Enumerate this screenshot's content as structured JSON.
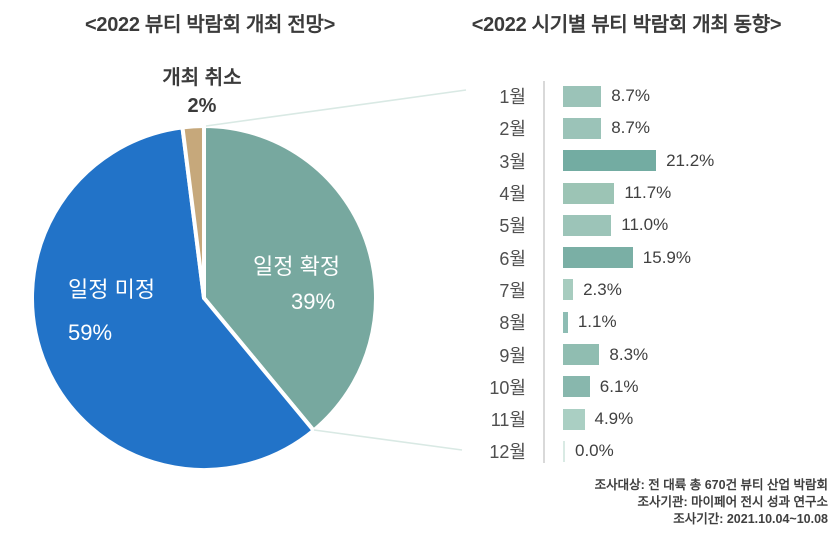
{
  "titles": {
    "left": "<2022 뷰티 박람회 개최 전망>",
    "right": "<2022 시기별 뷰티 박람회 개최 동향>"
  },
  "footer": {
    "lines": [
      "조사대상: 전 대륙 총 670건 뷰티 산업 박람회",
      "조사기관: 마이페어 전시 성과 연구소",
      "조사기간: 2021.10.04~10.08"
    ]
  },
  "colors": {
    "pie_confirmed": "#77a89f",
    "pie_undecided": "#2273c8",
    "pie_cancelled": "#c6a87b",
    "axis": "#d9d9d9",
    "callout_line": "#d9e9e4",
    "text_dark": "#3f3f3f"
  },
  "chart_data": [
    {
      "type": "pie",
      "title": "<2022 뷰티 박람회 개최 전망>",
      "labels": [
        "일정 확정",
        "일정 미정",
        "개최 취소"
      ],
      "values": [
        39,
        59,
        2
      ],
      "pct_labels": [
        "39%",
        "59%",
        "2%"
      ],
      "unit": "%",
      "colors": [
        "#77a89f",
        "#2273c8",
        "#c6a87b"
      ],
      "start_angle_deg_from_top": 0,
      "direction": "clockwise",
      "legend": "labels drawn on slices; cancelled slice labeled above pie"
    },
    {
      "type": "bar",
      "orientation": "horizontal",
      "title": "<2022 시기별 뷰티 박람회 개최 동향>",
      "categories": [
        "1월",
        "2월",
        "3월",
        "4월",
        "5월",
        "6월",
        "7월",
        "8월",
        "9월",
        "10월",
        "11월",
        "12월"
      ],
      "values": [
        8.7,
        8.7,
        21.2,
        11.7,
        11.0,
        15.9,
        2.3,
        1.1,
        8.3,
        6.1,
        4.9,
        0.0
      ],
      "value_labels": [
        "8.7%",
        "8.7%",
        "21.2%",
        "11.7%",
        "11.0%",
        "15.9%",
        "2.3%",
        "1.1%",
        "8.3%",
        "6.1%",
        "4.9%",
        "0.0%"
      ],
      "unit": "%",
      "xlim": [
        0,
        22
      ],
      "grid": false,
      "bar_colors": [
        "#9bc3b8",
        "#9bc3b8",
        "#73aca2",
        "#9cc4b5",
        "#9cc4b8",
        "#7aafa5",
        "#a7ccbf",
        "#8ebdb4",
        "#90bdb1",
        "#88b7ad",
        "#aacfc3",
        "#d9eae4"
      ]
    }
  ]
}
